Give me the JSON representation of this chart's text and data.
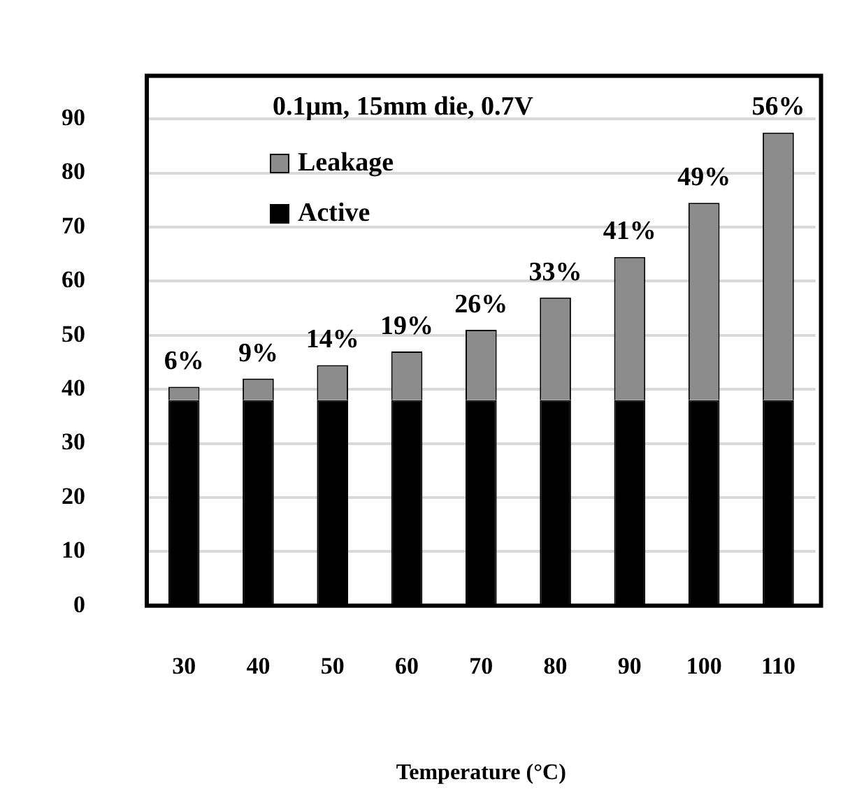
{
  "chart_data": {
    "type": "bar",
    "stacked": true,
    "xlabel": "Temperature (°C)",
    "categories": [
      "30",
      "40",
      "50",
      "60",
      "70",
      "80",
      "90",
      "100",
      "110"
    ],
    "series": [
      {
        "name": "Active",
        "color": "#000000",
        "values": [
          38,
          38,
          38,
          38,
          38,
          38,
          38,
          38,
          38
        ]
      },
      {
        "name": "Leakage",
        "color": "#8c8c8c",
        "values": [
          2.5,
          4,
          6.5,
          9,
          13,
          19,
          26.5,
          36.5,
          49.5
        ]
      }
    ],
    "ylim": [
      0,
      98
    ],
    "yticks": [
      0,
      10,
      20,
      30,
      40,
      50,
      60,
      70,
      80,
      90
    ],
    "grid": "y",
    "legend": "top left",
    "annotations": [
      "0.1μm, 15mm die, 0.7V",
      {
        "text": "6%",
        "x": "30",
        "y": 40.5
      },
      {
        "text": "9%",
        "x": "40",
        "y": 42
      },
      {
        "text": "14%",
        "x": "50",
        "y": 44.5
      },
      {
        "text": "19%",
        "x": "60",
        "y": 47
      },
      {
        "text": "26%",
        "x": "70",
        "y": 51
      },
      {
        "text": "33%",
        "x": "80",
        "y": 57
      },
      {
        "text": "41%",
        "x": "90",
        "y": 64.5
      },
      {
        "text": "49%",
        "x": "100",
        "y": 74.5
      },
      {
        "text": "56%",
        "x": "110",
        "y": 87.5
      }
    ]
  }
}
